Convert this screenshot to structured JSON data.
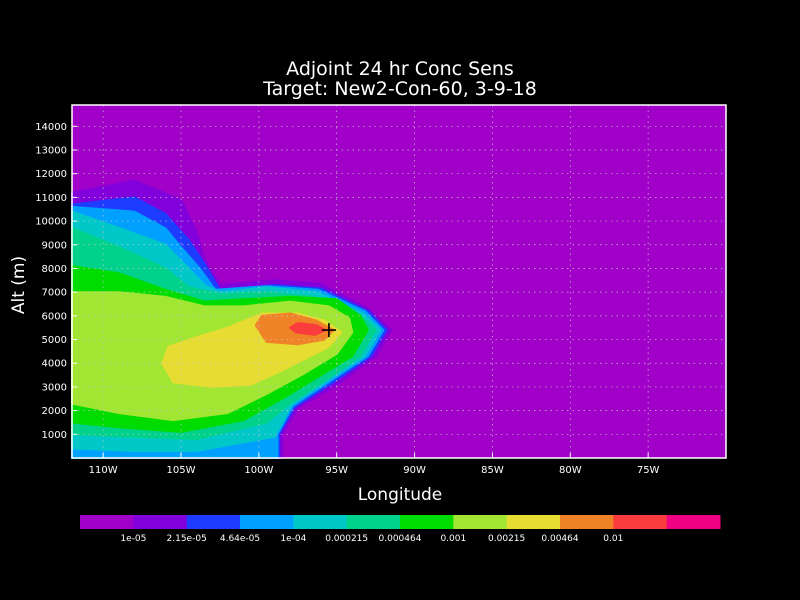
{
  "chart_data": {
    "type": "heatmap",
    "title": "Adjoint 24 hr Conc Sens",
    "subtitle": "Target: New2-Con-60, 3-9-18",
    "xlabel": "Longitude",
    "ylabel": "Alt (m)",
    "x_ticks": [
      "110W",
      "105W",
      "100W",
      "95W",
      "90W",
      "85W",
      "80W",
      "75W"
    ],
    "x_tick_values": [
      -110,
      -105,
      -100,
      -95,
      -90,
      -85,
      -80,
      -75
    ],
    "y_ticks": [
      "1000",
      "2000",
      "3000",
      "4000",
      "5000",
      "6000",
      "7000",
      "8000",
      "9000",
      "10000",
      "11000",
      "12000",
      "13000",
      "14000"
    ],
    "y_tick_values": [
      1000,
      2000,
      3000,
      4000,
      5000,
      6000,
      7000,
      8000,
      9000,
      10000,
      11000,
      12000,
      13000,
      14000
    ],
    "xlim": [
      -112,
      -70
    ],
    "ylim": [
      0,
      14900
    ],
    "grid": true,
    "background_color": "#a000c8",
    "target_marker": {
      "lon": -95.5,
      "alt": 5400,
      "symbol": "+"
    },
    "colorbar": {
      "placement": "bottom",
      "colors": [
        "#a000c8",
        "#8200dc",
        "#1e3cff",
        "#00a0ff",
        "#00c8c8",
        "#00d28c",
        "#00dc00",
        "#a0e632",
        "#e6dc32",
        "#f08228",
        "#fa3c3c",
        "#f00082"
      ],
      "labels": [
        "1e-05",
        "2.15e-05",
        "4.64e-05",
        "1e-04",
        "0.000215",
        "0.000464",
        "0.001",
        "0.00215",
        "0.00464",
        "0.01"
      ]
    },
    "contours": [
      {
        "level": 1,
        "color": "#8200dc",
        "points": [
          [
            -112,
            11200
          ],
          [
            -108,
            11700
          ],
          [
            -105,
            10900
          ],
          [
            -104,
            9500
          ],
          [
            -103.5,
            8400
          ],
          [
            -102.5,
            7300
          ],
          [
            -99,
            7500
          ],
          [
            -96,
            7350
          ],
          [
            -93,
            6300
          ],
          [
            -91.5,
            5400
          ],
          [
            -92.5,
            4300
          ],
          [
            -95,
            3100
          ],
          [
            -97.5,
            2100
          ],
          [
            -98.5,
            1000
          ],
          [
            -98.5,
            0
          ],
          [
            -112,
            0
          ]
        ]
      },
      {
        "level": 2,
        "color": "#1e3cff",
        "points": [
          [
            -112,
            10700
          ],
          [
            -108,
            11000
          ],
          [
            -106,
            10300
          ],
          [
            -104.5,
            9200
          ],
          [
            -103.5,
            8200
          ],
          [
            -102.5,
            7100
          ],
          [
            -99,
            7300
          ],
          [
            -96,
            7150
          ],
          [
            -93,
            6200
          ],
          [
            -91.8,
            5400
          ],
          [
            -92.8,
            4300
          ],
          [
            -95.2,
            3200
          ],
          [
            -97.7,
            2150
          ],
          [
            -98.7,
            1000
          ],
          [
            -98.7,
            0
          ],
          [
            -112,
            0
          ]
        ]
      },
      {
        "level": 3,
        "color": "#00a0ff",
        "points": [
          [
            -112,
            10600
          ],
          [
            -108,
            10400
          ],
          [
            -106,
            9700
          ],
          [
            -105,
            8900
          ],
          [
            -103.8,
            8000
          ],
          [
            -102.8,
            7100
          ],
          [
            -99.5,
            7250
          ],
          [
            -96.2,
            7100
          ],
          [
            -93.2,
            6200
          ],
          [
            -92,
            5400
          ],
          [
            -93,
            4300
          ],
          [
            -95.4,
            3250
          ],
          [
            -97.8,
            2200
          ],
          [
            -98.8,
            1000
          ],
          [
            -98.8,
            0
          ],
          [
            -112,
            0
          ]
        ]
      },
      {
        "level": 4,
        "color": "#00c8c8",
        "points": [
          [
            -112,
            10400
          ],
          [
            -108.5,
            9600
          ],
          [
            -106,
            9000
          ],
          [
            -104.5,
            8000
          ],
          [
            -103.5,
            7300
          ],
          [
            -102.5,
            7000
          ],
          [
            -99.5,
            7200
          ],
          [
            -96.3,
            7000
          ],
          [
            -93.3,
            6100
          ],
          [
            -92.2,
            5400
          ],
          [
            -93.2,
            4300
          ],
          [
            -95.5,
            3300
          ],
          [
            -97.9,
            2250
          ],
          [
            -99,
            900
          ],
          [
            -104,
            300
          ],
          [
            -108,
            300
          ],
          [
            -112,
            400
          ]
        ]
      },
      {
        "level": 5,
        "color": "#00d28c",
        "points": [
          [
            -112,
            9700
          ],
          [
            -109,
            8900
          ],
          [
            -106,
            8000
          ],
          [
            -104.5,
            7200
          ],
          [
            -102.5,
            6900
          ],
          [
            -99.5,
            7000
          ],
          [
            -96.4,
            6800
          ],
          [
            -93.5,
            6050
          ],
          [
            -92.5,
            5400
          ],
          [
            -93.5,
            4300
          ],
          [
            -95.7,
            3300
          ],
          [
            -98,
            2300
          ],
          [
            -99.5,
            1500
          ],
          [
            -104,
            800
          ],
          [
            -108,
            900
          ],
          [
            -112,
            1000
          ]
        ]
      },
      {
        "level": 6,
        "color": "#00dc00",
        "points": [
          [
            -112,
            8100
          ],
          [
            -109,
            7800
          ],
          [
            -106,
            7100
          ],
          [
            -103.5,
            6600
          ],
          [
            -101,
            6700
          ],
          [
            -98,
            6800
          ],
          [
            -95,
            6700
          ],
          [
            -93.5,
            6000
          ],
          [
            -93,
            5400
          ],
          [
            -94,
            4300
          ],
          [
            -96.5,
            3300
          ],
          [
            -98.5,
            2500
          ],
          [
            -101,
            1600
          ],
          [
            -105,
            1100
          ],
          [
            -109,
            1300
          ],
          [
            -112,
            1500
          ]
        ]
      },
      {
        "level": 7,
        "color": "#a0e632",
        "points": [
          [
            -112,
            7000
          ],
          [
            -109,
            7000
          ],
          [
            -106,
            6800
          ],
          [
            -103.5,
            6400
          ],
          [
            -101,
            6400
          ],
          [
            -98,
            6600
          ],
          [
            -95.5,
            6400
          ],
          [
            -94.2,
            5900
          ],
          [
            -94,
            5300
          ],
          [
            -95,
            4400
          ],
          [
            -97,
            3600
          ],
          [
            -99.5,
            2700
          ],
          [
            -102,
            1900
          ],
          [
            -105.5,
            1600
          ],
          [
            -109,
            1900
          ],
          [
            -112,
            2300
          ]
        ]
      },
      {
        "level": 8,
        "color": "#e6dc32",
        "points": [
          [
            -106.2,
            4000
          ],
          [
            -105.8,
            4700
          ],
          [
            -104,
            5100
          ],
          [
            -102,
            5500
          ],
          [
            -99.8,
            6100
          ],
          [
            -97.5,
            6100
          ],
          [
            -95.8,
            5800
          ],
          [
            -94.7,
            5300
          ],
          [
            -95.5,
            4700
          ],
          [
            -97,
            4200
          ],
          [
            -98.5,
            3700
          ],
          [
            -100.5,
            3100
          ],
          [
            -103,
            3000
          ],
          [
            -105.5,
            3200
          ]
        ]
      },
      {
        "level": 9,
        "color": "#f08228",
        "points": [
          [
            -100.2,
            5600
          ],
          [
            -99.8,
            6000
          ],
          [
            -98,
            6100
          ],
          [
            -96.3,
            5800
          ],
          [
            -95.2,
            5400
          ],
          [
            -95.8,
            5000
          ],
          [
            -97.5,
            4800
          ],
          [
            -99.5,
            4900
          ]
        ]
      },
      {
        "level": 10,
        "color": "#fa3c3c",
        "points": [
          [
            -98,
            5500
          ],
          [
            -97.5,
            5700
          ],
          [
            -96.3,
            5600
          ],
          [
            -95.7,
            5400
          ],
          [
            -96.4,
            5200
          ],
          [
            -97.6,
            5300
          ]
        ]
      }
    ]
  }
}
